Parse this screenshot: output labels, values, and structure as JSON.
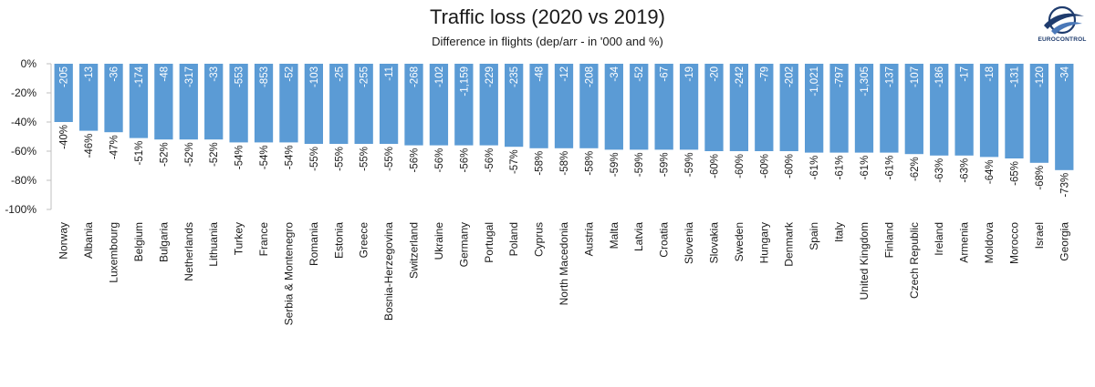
{
  "chart_data": {
    "type": "bar",
    "title": "Traffic loss (2020 vs 2019)",
    "subtitle": "Difference in flights (dep/arr - in '000 and %)",
    "xlabel": "",
    "ylabel": "",
    "ylim": [
      -100,
      0
    ],
    "yticks": [
      0,
      -20,
      -40,
      -60,
      -80,
      -100
    ],
    "ytick_labels": [
      "0%",
      "-20%",
      "-40%",
      "-60%",
      "-80%",
      "-100%"
    ],
    "grid": false,
    "bar_color": "#5b9bd5",
    "categories": [
      "Norway",
      "Albania",
      "Luxembourg",
      "Belgium",
      "Bulgaria",
      "Netherlands",
      "Lithuania",
      "Turkey",
      "France",
      "Serbia & Montenegro",
      "Romania",
      "Estonia",
      "Greece",
      "Bosnia-Herzegovina",
      "Switzerland",
      "Ukraine",
      "Germany",
      "Portugal",
      "Poland",
      "Cyprus",
      "North Macedonia",
      "Austria",
      "Malta",
      "Latvia",
      "Croatia",
      "Slovenia",
      "Slovakia",
      "Sweden",
      "Hungary",
      "Denmark",
      "Spain",
      "Italy",
      "United Kingdom",
      "Finland",
      "Czech Republic",
      "Ireland",
      "Armenia",
      "Moldova",
      "Morocco",
      "Israel",
      "Georgia"
    ],
    "values": [
      -40,
      -46,
      -47,
      -51,
      -52,
      -52,
      -52,
      -54,
      -54,
      -54,
      -55,
      -55,
      -55,
      -55,
      -56,
      -56,
      -56,
      -56,
      -57,
      -58,
      -58,
      -58,
      -59,
      -59,
      -59,
      -59,
      -60,
      -60,
      -60,
      -60,
      -61,
      -61,
      -61,
      -61,
      -62,
      -63,
      -63,
      -64,
      -65,
      -68,
      -73
    ],
    "percent_labels": [
      "-40%",
      "-46%",
      "-47%",
      "-51%",
      "-52%",
      "-52%",
      "-52%",
      "-54%",
      "-54%",
      "-54%",
      "-55%",
      "-55%",
      "-55%",
      "-55%",
      "-56%",
      "-56%",
      "-56%",
      "-56%",
      "-57%",
      "-58%",
      "-58%",
      "-58%",
      "-59%",
      "-59%",
      "-59%",
      "-59%",
      "-60%",
      "-60%",
      "-60%",
      "-60%",
      "-61%",
      "-61%",
      "-61%",
      "-61%",
      "-62%",
      "-63%",
      "-63%",
      "-64%",
      "-65%",
      "-68%",
      "-73%"
    ],
    "flight_labels": [
      "-205",
      "-13",
      "-36",
      "-174",
      "-48",
      "-317",
      "-33",
      "-553",
      "-853",
      "-52",
      "-103",
      "-25",
      "-255",
      "-11",
      "-268",
      "-102",
      "-1,159",
      "-229",
      "-235",
      "-48",
      "-12",
      "-208",
      "-34",
      "-52",
      "-67",
      "-19",
      "-20",
      "-242",
      "-79",
      "-202",
      "-1,021",
      "-797",
      "-1,305",
      "-137",
      "-107",
      "-186",
      "-17",
      "-18",
      "-131",
      "-120",
      "-34"
    ]
  },
  "logo": {
    "text": "EUROCONTROL",
    "color": "#1f3c6e"
  }
}
